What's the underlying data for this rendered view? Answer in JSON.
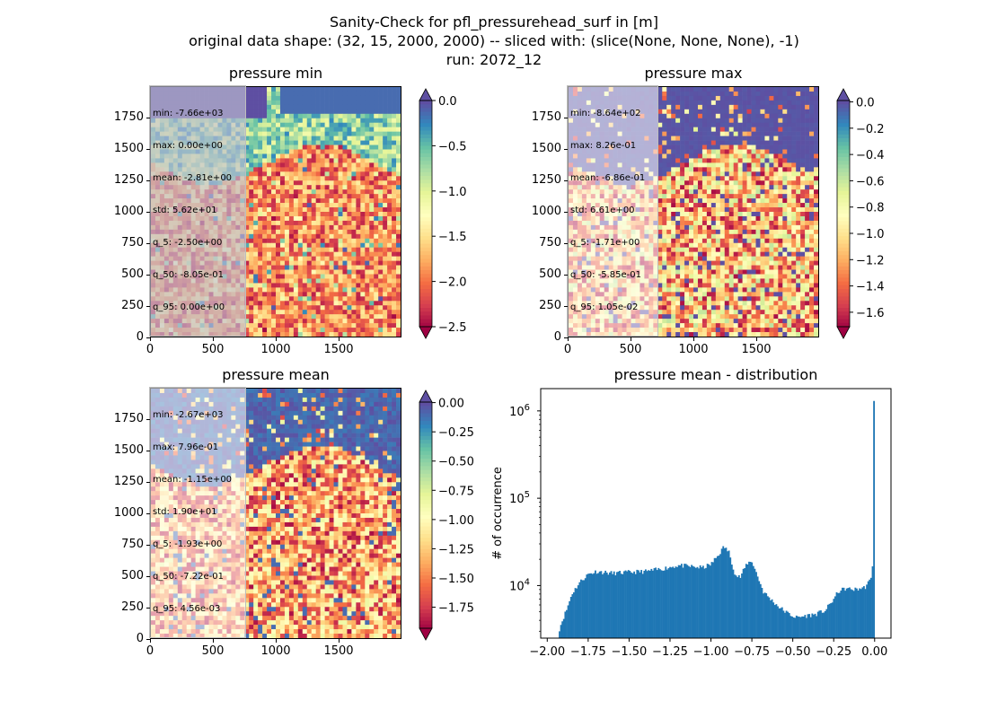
{
  "suptitle": {
    "line1": "Sanity-Check for pfl_pressurehead_surf in [m]",
    "line2": "original data shape: (32, 15, 2000, 2000) -- sliced with: (slice(None, None, None), -1)",
    "line3": "run: 2072_12"
  },
  "colormap": "Spectral",
  "colors": {
    "cmap_low": "#9e0142",
    "cmap_high": "#5e4fa2",
    "bar": "#1f77b4"
  },
  "panels": [
    {
      "id": "min",
      "title": "pressure min",
      "stats": [
        "min: -7.66e+03",
        "max: 0.00e+00",
        "mean: -2.81e+00",
        "std: 5.62e+01",
        "q_5: -2.50e+00",
        "q_50: -8.05e-01",
        "q_95: 0.00e+00"
      ],
      "xticks": [
        "0",
        "500",
        "1000",
        "1500"
      ],
      "yticks": [
        "0",
        "250",
        "500",
        "750",
        "1000",
        "1250",
        "1500",
        "1750"
      ],
      "colorbar": {
        "vmin": -2.5,
        "vmax": 0.0,
        "extend": "both",
        "ticks": [
          "0.0",
          "−0.5",
          "−1.0",
          "−1.5",
          "−2.0",
          "−2.5"
        ]
      }
    },
    {
      "id": "max",
      "title": "pressure max",
      "stats": [
        "min: -8.64e+02",
        "max: 8.26e-01",
        "mean: -6.86e-01",
        "std: 6.61e+00",
        "q_5: -1.71e+00",
        "q_50: -5.85e-01",
        "q_95: 1.05e-02"
      ],
      "xticks": [
        "0",
        "500",
        "1000",
        "1500"
      ],
      "yticks": [
        "0",
        "250",
        "500",
        "750",
        "1000",
        "1250",
        "1500",
        "1750"
      ],
      "colorbar": {
        "vmin": -1.71,
        "vmax": 0.0105,
        "extend": "both",
        "ticks": [
          "0.0",
          "−0.2",
          "−0.4",
          "−0.6",
          "−0.8",
          "−1.0",
          "−1.2",
          "−1.4",
          "−1.6"
        ]
      }
    },
    {
      "id": "mean",
      "title": "pressure mean",
      "stats": [
        "min: -2.67e+03",
        "max: 7.96e-01",
        "mean: -1.15e+00",
        "std: 1.90e+01",
        "q_5: -1.93e+00",
        "q_50: -7.22e-01",
        "q_95: 4.56e-03"
      ],
      "xticks": [
        "0",
        "500",
        "1000",
        "1500"
      ],
      "yticks": [
        "0",
        "250",
        "500",
        "750",
        "1000",
        "1250",
        "1500",
        "1750"
      ],
      "colorbar": {
        "vmin": -1.93,
        "vmax": 0.00456,
        "extend": "both",
        "ticks": [
          "0.00",
          "−0.25",
          "−0.50",
          "−0.75",
          "−1.00",
          "−1.25",
          "−1.50",
          "−1.75"
        ]
      }
    }
  ],
  "chart_data": [
    {
      "type": "heatmap",
      "title": "pressure min",
      "xlim": [
        0,
        2000
      ],
      "ylim": [
        0,
        2000
      ],
      "color_range": [
        -2.5,
        0.0
      ]
    },
    {
      "type": "heatmap",
      "title": "pressure max",
      "xlim": [
        0,
        2000
      ],
      "ylim": [
        0,
        2000
      ],
      "color_range": [
        -1.71,
        0.0105
      ]
    },
    {
      "type": "heatmap",
      "title": "pressure mean",
      "xlim": [
        0,
        2000
      ],
      "ylim": [
        0,
        2000
      ],
      "color_range": [
        -1.93,
        0.00456
      ]
    },
    {
      "type": "bar",
      "title": "pressure mean - distribution",
      "xlabel": "",
      "ylabel": "# of occurrence",
      "yscale": "log",
      "xlim": [
        -2.04,
        0.1
      ],
      "ylim": [
        2500,
        1800000
      ],
      "xticks": [
        "−2.00",
        "−1.75",
        "−1.50",
        "−1.25",
        "−1.00",
        "−0.75",
        "−0.50",
        "−0.25",
        "0.00"
      ],
      "ytick_labels": [
        {
          "base": "10",
          "exp": "4"
        },
        {
          "base": "10",
          "exp": "5"
        },
        {
          "base": "10",
          "exp": "6"
        }
      ],
      "profile": [
        {
          "x": -1.93,
          "y": 3000
        },
        {
          "x": -1.91,
          "y": 3900
        },
        {
          "x": -1.88,
          "y": 5400
        },
        {
          "x": -1.85,
          "y": 8000
        },
        {
          "x": -1.8,
          "y": 11000
        },
        {
          "x": -1.75,
          "y": 13500
        },
        {
          "x": -1.7,
          "y": 14500
        },
        {
          "x": -1.6,
          "y": 13800
        },
        {
          "x": -1.5,
          "y": 14200
        },
        {
          "x": -1.4,
          "y": 14500
        },
        {
          "x": -1.3,
          "y": 15500
        },
        {
          "x": -1.2,
          "y": 17000
        },
        {
          "x": -1.12,
          "y": 16500
        },
        {
          "x": -1.05,
          "y": 16000
        },
        {
          "x": -1.0,
          "y": 17500
        },
        {
          "x": -0.95,
          "y": 23000
        },
        {
          "x": -0.92,
          "y": 28000
        },
        {
          "x": -0.89,
          "y": 24000
        },
        {
          "x": -0.85,
          "y": 13000
        },
        {
          "x": -0.82,
          "y": 12500
        },
        {
          "x": -0.78,
          "y": 18000
        },
        {
          "x": -0.75,
          "y": 19000
        },
        {
          "x": -0.72,
          "y": 13500
        },
        {
          "x": -0.68,
          "y": 8500
        },
        {
          "x": -0.63,
          "y": 6800
        },
        {
          "x": -0.58,
          "y": 5600
        },
        {
          "x": -0.53,
          "y": 4800
        },
        {
          "x": -0.48,
          "y": 4300
        },
        {
          "x": -0.42,
          "y": 4500
        },
        {
          "x": -0.36,
          "y": 4700
        },
        {
          "x": -0.3,
          "y": 5200
        },
        {
          "x": -0.25,
          "y": 7000
        },
        {
          "x": -0.22,
          "y": 8600
        },
        {
          "x": -0.18,
          "y": 9200
        },
        {
          "x": -0.12,
          "y": 9000
        },
        {
          "x": -0.06,
          "y": 9500
        },
        {
          "x": -0.02,
          "y": 12000
        },
        {
          "x": -0.007,
          "y": 24000
        },
        {
          "x": 0.0,
          "y": 1300000
        }
      ]
    }
  ]
}
